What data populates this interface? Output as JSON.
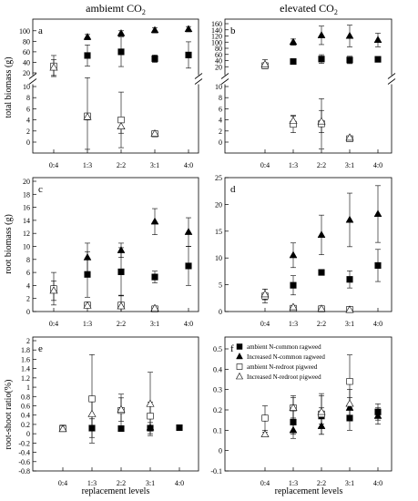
{
  "figure": {
    "col_titles": [
      "ambiemt CO2",
      "elevated CO2"
    ],
    "row_ylabels": [
      "total biomass (g)",
      "root biomass (g)",
      "root-shoot ratio(%)"
    ],
    "xlabel": "replacement levels"
  },
  "legend": {
    "panel": "f",
    "entries": [
      "ambient N-common ragweed",
      "Increased N-common ragweed",
      "ambient N-redroot pigweed",
      "Increased N-redroot pigweed"
    ]
  },
  "chart_data": [
    {
      "id": "a",
      "type": "scatter",
      "label": "a",
      "categories": [
        "0:4",
        "1:3",
        "2:2",
        "3:1",
        "4:0"
      ],
      "broken_axis": true,
      "upper": {
        "ylim": [
          20,
          110
        ],
        "ticks": [
          20,
          40,
          60,
          80,
          100
        ]
      },
      "lower": {
        "ylim": [
          0,
          10
        ],
        "ticks": [
          0,
          2,
          4,
          6,
          8,
          10
        ]
      },
      "series": [
        {
          "name": "ambient N-common ragweed",
          "marker": "square-filled",
          "points": [
            [
              1,
              53,
              20
            ],
            [
              2,
              60,
              28
            ],
            [
              3,
              47,
              7
            ],
            [
              4,
              54,
              25
            ]
          ]
        },
        {
          "name": "Increased N-common ragweed",
          "marker": "triangle-filled",
          "points": [
            [
              1,
              88,
              5
            ],
            [
              2,
              95,
              5
            ],
            [
              3,
              101,
              5
            ],
            [
              4,
              103,
              5
            ]
          ]
        },
        {
          "name": "ambient N-redroot pigweed",
          "marker": "square-open",
          "points": [
            [
              0,
              33,
              20
            ],
            [
              1,
              4.7,
              6
            ],
            [
              2,
              4.0,
              5
            ],
            [
              3,
              1.5,
              0.4
            ]
          ]
        },
        {
          "name": "Increased N-redroot pigweed",
          "marker": "triangle-open",
          "points": [
            [
              0,
              30,
              15
            ],
            [
              1,
              4.5,
              0.5
            ],
            [
              2,
              2.8,
              1.2
            ],
            [
              3,
              1.5,
              0.3
            ]
          ]
        }
      ]
    },
    {
      "id": "b",
      "type": "scatter",
      "label": "b",
      "categories": [
        "0:4",
        "1:3",
        "2:2",
        "3:1",
        "4:0"
      ],
      "broken_axis": true,
      "upper": {
        "ylim": [
          0,
          160
        ],
        "ticks": [
          20,
          40,
          60,
          80,
          100,
          120,
          140,
          160
        ]
      },
      "lower": {
        "ylim": [
          0,
          10
        ],
        "ticks": [
          0,
          2,
          4,
          6,
          8,
          10
        ]
      },
      "series": [
        {
          "name": "ambient N-common ragweed",
          "marker": "square-filled",
          "points": [
            [
              1,
              37,
              8
            ],
            [
              2,
              45,
              14
            ],
            [
              3,
              42,
              12
            ],
            [
              4,
              44,
              8
            ]
          ]
        },
        {
          "name": "Increased N-common ragweed",
          "marker": "triangle-filled",
          "points": [
            [
              1,
              100,
              10
            ],
            [
              2,
              122,
              30
            ],
            [
              3,
              120,
              35
            ],
            [
              4,
              107,
              22
            ]
          ]
        },
        {
          "name": "ambient N-redroot pigweed",
          "marker": "square-open",
          "points": [
            [
              0,
              23,
              9
            ],
            [
              1,
              3.2,
              1.5
            ],
            [
              2,
              3.3,
              4.5
            ],
            [
              3,
              0.6,
              0.3
            ]
          ]
        },
        {
          "name": "Increased N-redroot pigweed",
          "marker": "triangle-open",
          "points": [
            [
              0,
              28,
              15
            ],
            [
              1,
              3.8,
              1
            ],
            [
              2,
              3.7,
              2
            ],
            [
              3,
              0.8,
              0.3
            ]
          ]
        }
      ]
    },
    {
      "id": "c",
      "type": "scatter",
      "label": "c",
      "categories": [
        "0:4",
        "1:3",
        "2:2",
        "3:1",
        "4:0"
      ],
      "ylim": [
        0,
        20
      ],
      "yticks": [
        0,
        2,
        4,
        6,
        8,
        10,
        12,
        14,
        16,
        18,
        20
      ],
      "series": [
        {
          "name": "ambient N-common ragweed",
          "marker": "square-filled",
          "points": [
            [
              1,
              5.7,
              3.5
            ],
            [
              2,
              6.1,
              3.7
            ],
            [
              3,
              5.3,
              0.9
            ],
            [
              4,
              7.0,
              3.0
            ]
          ]
        },
        {
          "name": "Increased N-common ragweed",
          "marker": "triangle-filled",
          "points": [
            [
              1,
              8.3,
              2.2
            ],
            [
              2,
              9.4,
              1.1
            ],
            [
              3,
              13.8,
              2.0
            ],
            [
              4,
              12.2,
              2.2
            ]
          ]
        },
        {
          "name": "ambient N-redroot pigweed",
          "marker": "square-open",
          "points": [
            [
              0,
              3.5,
              2.5
            ],
            [
              1,
              1.0,
              0.4
            ],
            [
              2,
              1.0,
              1.5
            ],
            [
              3,
              0.4,
              0.3
            ]
          ]
        },
        {
          "name": "Increased N-redroot pigweed",
          "marker": "triangle-open",
          "points": [
            [
              0,
              3.2,
              1.5
            ],
            [
              1,
              0.9,
              0.3
            ],
            [
              2,
              0.8,
              0.3
            ],
            [
              3,
              0.5,
              0.2
            ]
          ]
        }
      ]
    },
    {
      "id": "d",
      "type": "scatter",
      "label": "d",
      "categories": [
        "0:4",
        "1:3",
        "2:2",
        "3:1",
        "4:0"
      ],
      "ylim": [
        0,
        25
      ],
      "yticks": [
        0,
        5,
        10,
        15,
        20,
        25
      ],
      "series": [
        {
          "name": "ambient N-common ragweed",
          "marker": "square-filled",
          "points": [
            [
              1,
              4.9,
              1.8
            ],
            [
              2,
              7.3,
              0.5
            ],
            [
              3,
              6.0,
              1.6
            ],
            [
              4,
              8.6,
              3.0
            ]
          ]
        },
        {
          "name": "Increased N-common ragweed",
          "marker": "triangle-filled",
          "points": [
            [
              1,
              10.5,
              2.3
            ],
            [
              2,
              14.3,
              3.7
            ],
            [
              3,
              17.1,
              5.0
            ],
            [
              4,
              18.2,
              5.3
            ]
          ]
        },
        {
          "name": "ambient N-redroot pigweed",
          "marker": "square-open",
          "points": [
            [
              0,
              2.9,
              1.3
            ],
            [
              1,
              0.6,
              0.5
            ],
            [
              2,
              0.5,
              0.5
            ],
            [
              3,
              0.4,
              0.4
            ]
          ]
        },
        {
          "name": "Increased N-redroot pigweed",
          "marker": "triangle-open",
          "points": [
            [
              0,
              3.2,
              1.0
            ],
            [
              1,
              0.8,
              0.3
            ],
            [
              2,
              0.5,
              0.3
            ],
            [
              3,
              0.3,
              0.2
            ]
          ]
        }
      ]
    },
    {
      "id": "e",
      "type": "scatter",
      "label": "e",
      "categories": [
        "0:4",
        "1:3",
        "2:2",
        "3:1",
        "4:0"
      ],
      "ylim": [
        -0.8,
        2.0
      ],
      "yticks": [
        -0.8,
        -0.6,
        -0.4,
        -0.2,
        0.0,
        0.2,
        0.4,
        0.6,
        0.8,
        1.0,
        1.2,
        1.4,
        1.6,
        1.8,
        2.0
      ],
      "series": [
        {
          "name": "ambient N-common ragweed",
          "marker": "square-filled",
          "points": [
            [
              0,
              0.12,
              0.02
            ],
            [
              1,
              0.12,
              0.2
            ],
            [
              2,
              0.11,
              0.02
            ],
            [
              3,
              0.12,
              0.12
            ],
            [
              4,
              0.13,
              0.02
            ]
          ]
        },
        {
          "name": "Increased N-common ragweed",
          "marker": "triangle-filled",
          "points": [
            [
              3,
              0.13,
              0.04
            ]
          ]
        },
        {
          "name": "ambient N-redroot pigweed",
          "marker": "square-open",
          "points": [
            [
              0,
              0.11,
              0.02
            ],
            [
              1,
              0.75,
              0.95
            ],
            [
              2,
              0.5,
              0.35
            ],
            [
              3,
              0.38,
              0.3
            ]
          ]
        },
        {
          "name": "Increased N-redroot pigweed",
          "marker": "triangle-open",
          "points": [
            [
              0,
              0.1,
              0.02
            ],
            [
              1,
              0.42,
              0.3
            ],
            [
              2,
              0.52,
              0.25
            ],
            [
              3,
              0.64,
              0.68
            ]
          ]
        }
      ]
    },
    {
      "id": "f",
      "type": "scatter",
      "label": "f",
      "categories": [
        "0:4",
        "1:3",
        "2:2",
        "3:1",
        "4:0"
      ],
      "ylim": [
        -0.1,
        0.5
      ],
      "yticks": [
        -0.1,
        0.0,
        0.1,
        0.2,
        0.3,
        0.4,
        0.5
      ],
      "series": [
        {
          "name": "ambient N-common ragweed",
          "marker": "square-filled",
          "points": [
            [
              1,
              0.14,
              0.06
            ],
            [
              2,
              0.17,
              0.04
            ],
            [
              3,
              0.16,
              0.06
            ],
            [
              4,
              0.19,
              0.04
            ]
          ]
        },
        {
          "name": "Increased N-common ragweed",
          "marker": "triangle-filled",
          "points": [
            [
              1,
              0.1,
              0.04
            ],
            [
              2,
              0.12,
              0.04
            ],
            [
              3,
              0.21,
              0.05
            ],
            [
              4,
              0.17,
              0.04
            ]
          ]
        },
        {
          "name": "ambient N-redroot pigweed",
          "marker": "square-open",
          "points": [
            [
              0,
              0.16,
              0.06
            ],
            [
              1,
              0.21,
              0.06
            ],
            [
              2,
              0.18,
              0.1
            ],
            [
              3,
              0.34,
              0.13
            ]
          ]
        },
        {
          "name": "Increased N-redroot pigweed",
          "marker": "triangle-open",
          "points": [
            [
              0,
              0.08,
              0.01
            ],
            [
              1,
              0.21,
              0.05
            ],
            [
              2,
              0.19,
              0.08
            ],
            [
              3,
              0.23,
              0.07
            ]
          ]
        }
      ]
    }
  ]
}
